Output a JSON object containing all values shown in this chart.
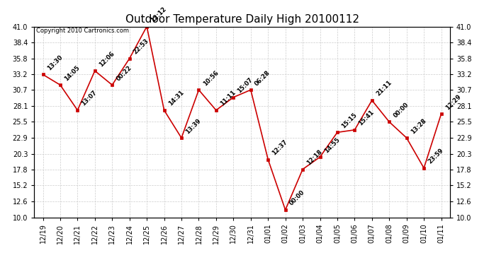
{
  "title": "Outdoor Temperature Daily High 20100112",
  "copyright": "Copyright 2010 Cartronics.com",
  "x_labels": [
    "12/19",
    "12/20",
    "12/21",
    "12/22",
    "12/23",
    "12/24",
    "12/25",
    "12/26",
    "12/27",
    "12/28",
    "12/29",
    "12/30",
    "12/31",
    "01/01",
    "01/02",
    "01/03",
    "01/04",
    "01/05",
    "01/06",
    "01/07",
    "01/08",
    "01/09",
    "01/10",
    "01/11"
  ],
  "y_values": [
    33.2,
    31.5,
    27.4,
    33.8,
    31.5,
    35.8,
    41.0,
    27.4,
    22.9,
    30.7,
    27.4,
    29.5,
    30.7,
    19.4,
    11.2,
    17.8,
    19.8,
    23.8,
    24.2,
    29.0,
    25.5,
    22.9,
    18.0,
    26.8
  ],
  "annotations": [
    "13:30",
    "14:05",
    "13:07",
    "12:06",
    "00:22",
    "22:53",
    "12:12",
    "14:31",
    "13:39",
    "10:56",
    "11:11",
    "15:07",
    "06:28",
    "12:37",
    "00:00",
    "12:18",
    "14:55",
    "15:15",
    "15:41",
    "21:11",
    "00:00",
    "13:28",
    "23:59",
    "12:29"
  ],
  "ylim": [
    10.0,
    41.0
  ],
  "yticks": [
    10.0,
    12.6,
    15.2,
    17.8,
    20.3,
    22.9,
    25.5,
    28.1,
    30.7,
    33.2,
    35.8,
    38.4,
    41.0
  ],
  "line_color": "#cc0000",
  "marker_color": "#cc0000",
  "background_color": "#ffffff",
  "grid_color": "#cccccc",
  "title_fontsize": 11,
  "annotation_fontsize": 6,
  "tick_fontsize": 7,
  "copyright_fontsize": 6
}
